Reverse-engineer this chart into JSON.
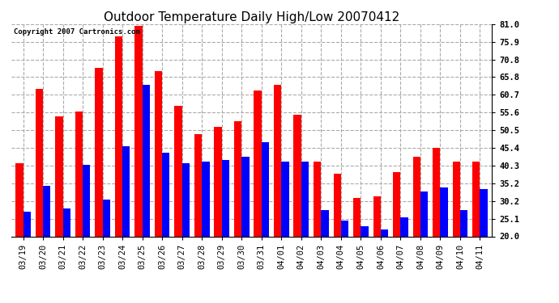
{
  "title": "Outdoor Temperature Daily High/Low 20070412",
  "copyright": "Copyright 2007 Cartronics.com",
  "categories": [
    "03/19",
    "03/20",
    "03/21",
    "03/22",
    "03/23",
    "03/24",
    "03/25",
    "03/26",
    "03/27",
    "03/28",
    "03/29",
    "03/30",
    "03/31",
    "04/01",
    "04/02",
    "04/03",
    "04/04",
    "04/05",
    "04/06",
    "04/07",
    "04/08",
    "04/09",
    "04/10",
    "04/11"
  ],
  "highs": [
    41.0,
    62.5,
    54.5,
    56.0,
    68.5,
    77.5,
    80.5,
    67.5,
    57.5,
    49.5,
    51.5,
    53.0,
    62.0,
    63.5,
    55.0,
    41.5,
    38.0,
    31.0,
    31.5,
    38.5,
    43.0,
    45.5,
    41.5,
    41.5
  ],
  "lows": [
    27.0,
    34.5,
    28.0,
    40.5,
    30.5,
    46.0,
    63.5,
    44.0,
    41.0,
    41.5,
    42.0,
    43.0,
    47.0,
    41.5,
    41.5,
    27.5,
    24.5,
    23.0,
    22.0,
    25.5,
    33.0,
    34.0,
    27.5,
    33.5
  ],
  "high_color": "#ff0000",
  "low_color": "#0000ff",
  "bg_color": "#ffffff",
  "grid_color": "#aaaaaa",
  "ymin": 20.0,
  "ymax": 81.0,
  "yticks": [
    20.0,
    25.1,
    30.2,
    35.2,
    40.3,
    45.4,
    50.5,
    55.6,
    60.7,
    65.8,
    70.8,
    75.9,
    81.0
  ],
  "title_fontsize": 11,
  "tick_fontsize": 7.5,
  "bar_width": 0.38
}
